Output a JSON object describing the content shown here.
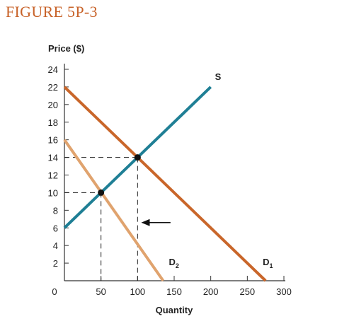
{
  "figure_label": "FIGURE 5P-3",
  "colors": {
    "title": "#c8632a",
    "supply": "#1f7f95",
    "demand1": "#c9662a",
    "demand2": "#e0a36e",
    "axis": "#333333"
  },
  "chart_data": {
    "type": "line",
    "ylabel": "Price ($)",
    "xlabel": "Quantity",
    "xlim": [
      0,
      300
    ],
    "ylim": [
      0,
      24
    ],
    "x_ticks": [
      0,
      50,
      100,
      150,
      200,
      250,
      300
    ],
    "y_ticks": [
      2,
      4,
      6,
      8,
      10,
      12,
      14,
      16,
      18,
      20,
      22,
      24
    ],
    "series": [
      {
        "name": "S",
        "sub": "",
        "color_key": "supply",
        "points": [
          [
            0,
            6
          ],
          [
            200,
            22
          ]
        ]
      },
      {
        "name": "D",
        "sub": "1",
        "color_key": "demand1",
        "points": [
          [
            0,
            22
          ],
          [
            275,
            0
          ]
        ]
      },
      {
        "name": "D",
        "sub": "2",
        "color_key": "demand2",
        "points": [
          [
            0,
            16
          ],
          [
            135,
            0
          ]
        ]
      }
    ],
    "equilibria": [
      {
        "x": 100,
        "y": 14
      },
      {
        "x": 50,
        "y": 10
      }
    ],
    "annotations": [
      {
        "type": "arrow",
        "from": [
          145,
          6.6
        ],
        "to": [
          105,
          6.6
        ],
        "direction": "left"
      }
    ]
  }
}
